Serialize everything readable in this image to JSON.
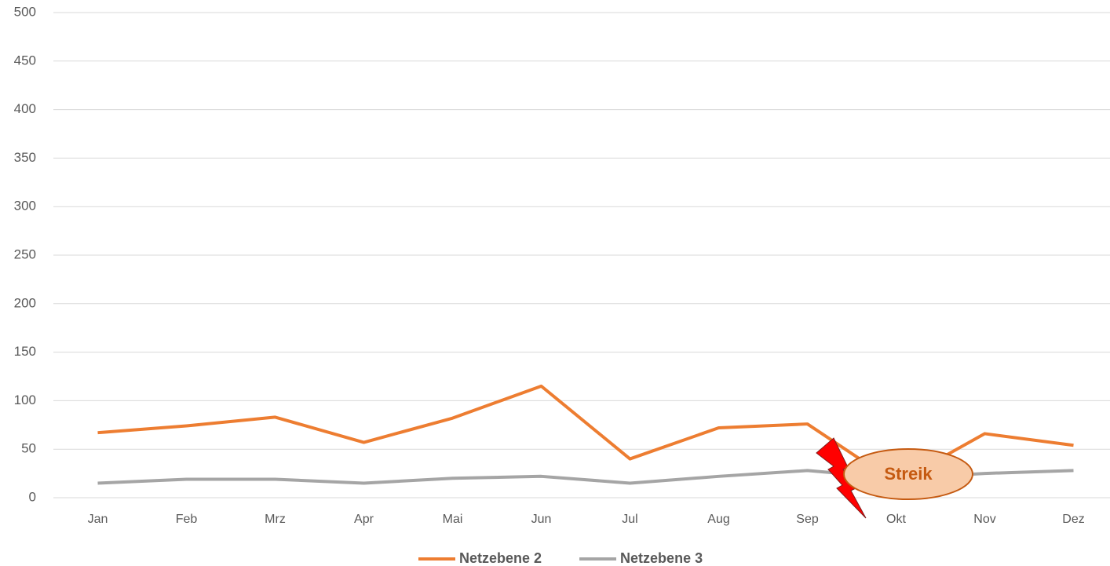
{
  "chart_data": {
    "type": "line",
    "categories": [
      "Jan",
      "Feb",
      "Mrz",
      "Apr",
      "Mai",
      "Jun",
      "Jul",
      "Aug",
      "Sep",
      "Okt",
      "Nov",
      "Dez"
    ],
    "series": [
      {
        "name": "Netzebene 2",
        "color": "#ed7d31",
        "values": [
          67,
          74,
          83,
          57,
          82,
          115,
          40,
          72,
          76,
          15,
          66,
          54
        ]
      },
      {
        "name": "Netzebene 3",
        "color": "#a5a5a5",
        "values": [
          15,
          19,
          19,
          15,
          20,
          22,
          15,
          22,
          28,
          20,
          25,
          28
        ]
      }
    ],
    "ylim": [
      0,
      500
    ],
    "yticks": [
      0,
      50,
      100,
      150,
      200,
      250,
      300,
      350,
      400,
      450,
      500
    ],
    "grid": true,
    "legend": "bottom",
    "annotation": "Streik"
  }
}
